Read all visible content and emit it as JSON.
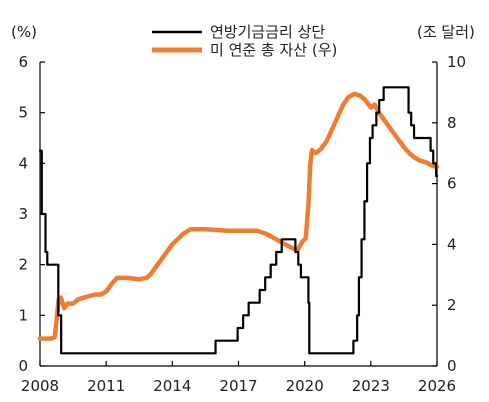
{
  "chart_data": {
    "type": "line",
    "left_axis_unit": "(%)",
    "right_axis_unit": "(조 달러)",
    "xlim": [
      2008,
      2026
    ],
    "x_ticks": [
      "2008",
      "2011",
      "2014",
      "2017",
      "2020",
      "2023",
      "2026"
    ],
    "y_left": {
      "ylim": [
        0,
        6
      ],
      "ticks": [
        "0",
        "1",
        "2",
        "3",
        "4",
        "5",
        "6"
      ]
    },
    "y_right": {
      "ylim": [
        0,
        10
      ],
      "ticks": [
        "0",
        "2",
        "4",
        "6",
        "8",
        "10"
      ]
    },
    "grid": false,
    "legend_position": "top",
    "series": [
      {
        "name": "연방기금금리 상단",
        "axis": "left",
        "color": "#000000",
        "step": true,
        "points": [
          [
            2008.0,
            4.25
          ],
          [
            2008.08,
            3.0
          ],
          [
            2008.25,
            2.25
          ],
          [
            2008.33,
            2.0
          ],
          [
            2008.83,
            1.0
          ],
          [
            2008.96,
            0.25
          ],
          [
            2015.96,
            0.5
          ],
          [
            2016.96,
            0.75
          ],
          [
            2017.21,
            1.0
          ],
          [
            2017.46,
            1.25
          ],
          [
            2017.96,
            1.5
          ],
          [
            2018.21,
            1.75
          ],
          [
            2018.46,
            2.0
          ],
          [
            2018.71,
            2.25
          ],
          [
            2018.96,
            2.5
          ],
          [
            2019.58,
            2.25
          ],
          [
            2019.71,
            2.0
          ],
          [
            2019.83,
            1.75
          ],
          [
            2020.17,
            1.25
          ],
          [
            2020.21,
            0.25
          ],
          [
            2022.21,
            0.5
          ],
          [
            2022.38,
            1.0
          ],
          [
            2022.46,
            1.75
          ],
          [
            2022.58,
            2.5
          ],
          [
            2022.71,
            3.25
          ],
          [
            2022.83,
            4.0
          ],
          [
            2022.96,
            4.5
          ],
          [
            2023.08,
            4.75
          ],
          [
            2023.25,
            5.0
          ],
          [
            2023.38,
            5.25
          ],
          [
            2023.58,
            5.5
          ],
          [
            2024.71,
            5.0
          ],
          [
            2024.83,
            4.75
          ],
          [
            2024.96,
            4.5
          ],
          [
            2025.71,
            4.25
          ],
          [
            2025.83,
            4.0
          ],
          [
            2025.96,
            3.75
          ],
          [
            2026.0,
            3.75
          ]
        ]
      },
      {
        "name": "미 연준 총 자산 (우)",
        "axis": "right",
        "color": "#ED7D31",
        "step": false,
        "points": [
          [
            2008.0,
            0.9
          ],
          [
            2008.5,
            0.9
          ],
          [
            2008.67,
            0.95
          ],
          [
            2008.75,
            1.5
          ],
          [
            2008.85,
            2.2
          ],
          [
            2008.95,
            2.25
          ],
          [
            2009.1,
            1.9
          ],
          [
            2009.25,
            2.05
          ],
          [
            2009.5,
            2.05
          ],
          [
            2009.75,
            2.2
          ],
          [
            2010.0,
            2.25
          ],
          [
            2010.25,
            2.3
          ],
          [
            2010.5,
            2.35
          ],
          [
            2010.75,
            2.35
          ],
          [
            2011.0,
            2.45
          ],
          [
            2011.25,
            2.7
          ],
          [
            2011.5,
            2.9
          ],
          [
            2012.0,
            2.9
          ],
          [
            2012.5,
            2.85
          ],
          [
            2012.83,
            2.9
          ],
          [
            2013.0,
            3.0
          ],
          [
            2013.5,
            3.5
          ],
          [
            2014.0,
            4.0
          ],
          [
            2014.5,
            4.35
          ],
          [
            2014.83,
            4.5
          ],
          [
            2015.5,
            4.5
          ],
          [
            2016.5,
            4.45
          ],
          [
            2017.5,
            4.45
          ],
          [
            2017.83,
            4.45
          ],
          [
            2018.25,
            4.35
          ],
          [
            2018.75,
            4.15
          ],
          [
            2019.25,
            3.95
          ],
          [
            2019.67,
            3.8
          ],
          [
            2019.9,
            4.1
          ],
          [
            2020.05,
            4.2
          ],
          [
            2020.17,
            5.3
          ],
          [
            2020.25,
            6.6
          ],
          [
            2020.33,
            7.1
          ],
          [
            2020.5,
            7.0
          ],
          [
            2020.75,
            7.15
          ],
          [
            2021.0,
            7.4
          ],
          [
            2021.25,
            7.8
          ],
          [
            2021.5,
            8.2
          ],
          [
            2021.75,
            8.6
          ],
          [
            2022.0,
            8.85
          ],
          [
            2022.25,
            8.95
          ],
          [
            2022.5,
            8.9
          ],
          [
            2022.75,
            8.75
          ],
          [
            2023.0,
            8.5
          ],
          [
            2023.17,
            8.6
          ],
          [
            2023.35,
            8.35
          ],
          [
            2023.5,
            8.2
          ],
          [
            2023.75,
            7.95
          ],
          [
            2024.0,
            7.7
          ],
          [
            2024.25,
            7.45
          ],
          [
            2024.5,
            7.2
          ],
          [
            2024.75,
            7.0
          ],
          [
            2025.0,
            6.85
          ],
          [
            2025.25,
            6.75
          ],
          [
            2025.5,
            6.7
          ],
          [
            2025.75,
            6.6
          ],
          [
            2026.0,
            6.55
          ]
        ]
      }
    ]
  }
}
